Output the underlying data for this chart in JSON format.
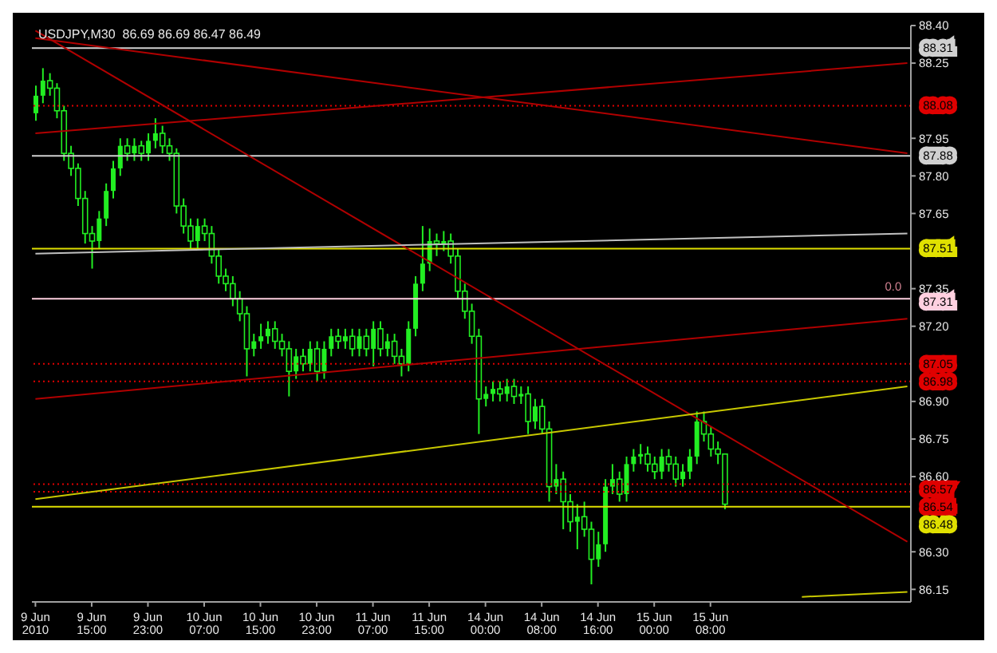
{
  "chart_data": {
    "type": "candlestick",
    "title": "USDJPY,M30  86.69 86.69 86.47 86.49",
    "color": "#22ee22",
    "categories": [
      "9 Jun 2010",
      null,
      null,
      null,
      null,
      null,
      null,
      null,
      "9 Jun 15:00",
      null,
      null,
      null,
      null,
      null,
      null,
      null,
      "9 Jun 23:00",
      null,
      null,
      null,
      null,
      null,
      null,
      null,
      "10 Jun 07:00",
      null,
      null,
      null,
      null,
      null,
      null,
      null,
      "10 Jun 15:00",
      null,
      null,
      null,
      null,
      null,
      null,
      null,
      "10 Jun 23:00",
      null,
      null,
      null,
      null,
      null,
      null,
      null,
      "11 Jun 07:00",
      null,
      null,
      null,
      null,
      null,
      null,
      null,
      "11 Jun 15:00",
      null,
      null,
      null,
      null,
      null,
      null,
      null,
      "14 Jun 00:00",
      null,
      null,
      null,
      null,
      null,
      null,
      null,
      "14 Jun 08:00",
      null,
      null,
      null,
      null,
      null,
      null,
      null,
      "14 Jun 16:00",
      null,
      null,
      null,
      null,
      null,
      null,
      null,
      "15 Jun 00:00",
      null,
      null,
      null,
      null,
      null,
      null,
      null,
      "15 Jun 08:00",
      null,
      null,
      null,
      null,
      null,
      null,
      null,
      null,
      null,
      null,
      null,
      null,
      null,
      null,
      null,
      null,
      null,
      null,
      null,
      null,
      null,
      null,
      null,
      null,
      null,
      null,
      null,
      null
    ],
    "ohlc": [
      [
        88.05,
        88.16,
        88.02,
        88.12
      ],
      [
        88.12,
        88.23,
        88.09,
        88.18
      ],
      [
        88.18,
        88.21,
        88.12,
        88.15
      ],
      [
        88.15,
        88.17,
        88.03,
        88.06
      ],
      [
        88.06,
        88.08,
        87.86,
        87.89
      ],
      [
        87.89,
        87.92,
        87.8,
        87.83
      ],
      [
        87.83,
        87.85,
        87.68,
        87.71
      ],
      [
        87.71,
        87.74,
        87.53,
        87.57
      ],
      [
        87.57,
        87.6,
        87.43,
        87.54
      ],
      [
        87.54,
        87.66,
        87.51,
        87.63
      ],
      [
        87.63,
        87.77,
        87.6,
        87.74
      ],
      [
        87.74,
        87.86,
        87.71,
        87.83
      ],
      [
        87.83,
        87.95,
        87.8,
        87.92
      ],
      [
        87.92,
        87.95,
        87.86,
        87.89
      ],
      [
        87.89,
        87.95,
        87.86,
        87.92
      ],
      [
        87.92,
        87.94,
        87.86,
        87.89
      ],
      [
        87.89,
        87.97,
        87.86,
        87.94
      ],
      [
        87.94,
        88.03,
        87.91,
        87.97
      ],
      [
        87.97,
        88.0,
        87.89,
        87.92
      ],
      [
        87.92,
        87.95,
        87.86,
        87.89
      ],
      [
        87.89,
        87.91,
        87.65,
        87.68
      ],
      [
        87.68,
        87.71,
        87.57,
        87.6
      ],
      [
        87.6,
        87.63,
        87.51,
        87.54
      ],
      [
        87.54,
        87.63,
        87.51,
        87.6
      ],
      [
        87.6,
        87.63,
        87.54,
        87.57
      ],
      [
        87.57,
        87.6,
        87.45,
        87.48
      ],
      [
        87.48,
        87.51,
        87.37,
        87.4
      ],
      [
        87.4,
        87.43,
        87.34,
        87.37
      ],
      [
        87.37,
        87.4,
        87.28,
        87.31
      ],
      [
        87.31,
        87.34,
        87.22,
        87.25
      ],
      [
        87.25,
        87.28,
        87.0,
        87.11
      ],
      [
        87.11,
        87.17,
        87.08,
        87.14
      ],
      [
        87.14,
        87.21,
        87.11,
        87.16
      ],
      [
        87.16,
        87.22,
        87.13,
        87.19
      ],
      [
        87.19,
        87.22,
        87.11,
        87.14
      ],
      [
        87.14,
        87.17,
        87.08,
        87.11
      ],
      [
        87.11,
        87.14,
        86.92,
        87.02
      ],
      [
        87.02,
        87.11,
        86.99,
        87.08
      ],
      [
        87.08,
        87.11,
        87.02,
        87.05
      ],
      [
        87.05,
        87.14,
        87.02,
        87.11
      ],
      [
        87.11,
        87.14,
        86.98,
        87.02
      ],
      [
        87.02,
        87.14,
        86.99,
        87.11
      ],
      [
        87.11,
        87.19,
        87.08,
        87.16
      ],
      [
        87.16,
        87.19,
        87.11,
        87.14
      ],
      [
        87.14,
        87.19,
        87.11,
        87.16
      ],
      [
        87.16,
        87.19,
        87.08,
        87.11
      ],
      [
        87.11,
        87.19,
        87.08,
        87.16
      ],
      [
        87.16,
        87.19,
        87.08,
        87.11
      ],
      [
        87.11,
        87.22,
        87.04,
        87.19
      ],
      [
        87.19,
        87.22,
        87.08,
        87.11
      ],
      [
        87.11,
        87.17,
        87.08,
        87.14
      ],
      [
        87.14,
        87.17,
        87.05,
        87.08
      ],
      [
        87.08,
        87.11,
        87.0,
        87.05
      ],
      [
        87.05,
        87.22,
        87.02,
        87.19
      ],
      [
        87.19,
        87.4,
        87.16,
        87.37
      ],
      [
        87.37,
        87.6,
        87.34,
        87.45
      ],
      [
        87.45,
        87.59,
        87.42,
        87.54
      ],
      [
        87.54,
        87.57,
        87.48,
        87.53
      ],
      [
        87.53,
        87.58,
        87.5,
        87.54
      ],
      [
        87.54,
        87.57,
        87.45,
        87.48
      ],
      [
        87.48,
        87.51,
        87.31,
        87.34
      ],
      [
        87.34,
        87.37,
        87.23,
        87.26
      ],
      [
        87.26,
        87.29,
        87.13,
        87.16
      ],
      [
        87.16,
        87.19,
        86.77,
        86.91
      ],
      [
        86.91,
        86.96,
        86.88,
        86.93
      ],
      [
        86.93,
        86.98,
        86.9,
        86.95
      ],
      [
        86.95,
        86.98,
        86.9,
        86.93
      ],
      [
        86.93,
        86.99,
        86.9,
        86.96
      ],
      [
        86.96,
        86.99,
        86.89,
        86.92
      ],
      [
        86.92,
        86.96,
        86.89,
        86.93
      ],
      [
        86.93,
        86.96,
        86.77,
        86.82
      ],
      [
        86.82,
        86.91,
        86.79,
        86.88
      ],
      [
        86.88,
        86.91,
        86.77,
        86.79
      ],
      [
        86.79,
        86.82,
        86.5,
        86.56
      ],
      [
        86.56,
        86.65,
        86.53,
        86.59
      ],
      [
        86.59,
        86.62,
        86.39,
        86.5
      ],
      [
        86.5,
        86.53,
        86.38,
        86.42
      ],
      [
        86.42,
        86.49,
        86.31,
        86.44
      ],
      [
        86.44,
        86.5,
        86.36,
        86.39
      ],
      [
        86.39,
        86.42,
        86.17,
        86.27
      ],
      [
        86.27,
        86.38,
        86.24,
        86.33
      ],
      [
        86.33,
        86.59,
        86.3,
        86.56
      ],
      [
        86.56,
        86.65,
        86.53,
        86.59
      ],
      [
        86.59,
        86.62,
        86.5,
        86.53
      ],
      [
        86.53,
        86.68,
        86.5,
        86.65
      ],
      [
        86.65,
        86.71,
        86.62,
        86.68
      ],
      [
        86.68,
        86.73,
        86.65,
        86.69
      ],
      [
        86.69,
        86.72,
        86.62,
        86.65
      ],
      [
        86.65,
        86.68,
        86.59,
        86.62
      ],
      [
        86.62,
        86.71,
        86.59,
        86.68
      ],
      [
        86.68,
        86.71,
        86.62,
        86.65
      ],
      [
        86.65,
        86.68,
        86.56,
        86.59
      ],
      [
        86.59,
        86.65,
        86.56,
        86.62
      ],
      [
        86.62,
        86.71,
        86.59,
        86.68
      ],
      [
        86.68,
        86.86,
        86.65,
        86.82
      ],
      [
        86.82,
        86.86,
        86.74,
        86.77
      ],
      [
        86.77,
        86.8,
        86.68,
        86.71
      ],
      [
        86.71,
        86.74,
        86.65,
        86.69
      ],
      [
        86.69,
        86.69,
        86.47,
        86.49
      ],
      null,
      null,
      null,
      null,
      null,
      null,
      null,
      null,
      null,
      null,
      null,
      null,
      null,
      null,
      null,
      null,
      null,
      null,
      null,
      null,
      null,
      null,
      null,
      null,
      null,
      null
    ],
    "series": [
      {
        "type": "line",
        "color": "#b00000",
        "values": [
          88.35,
          null,
          null,
          null,
          null,
          null,
          null,
          null,
          null,
          null,
          null,
          null,
          null,
          null,
          null,
          null,
          null,
          null,
          null,
          null,
          null,
          null,
          null,
          null,
          null,
          null,
          null,
          null,
          null,
          null,
          null,
          null,
          null,
          null,
          null,
          null,
          null,
          null,
          null,
          null,
          null,
          null,
          null,
          null,
          null,
          null,
          null,
          null,
          null,
          null,
          null,
          null,
          null,
          null,
          null,
          null,
          null,
          null,
          null,
          null,
          null,
          null,
          null,
          null,
          null,
          null,
          null,
          null,
          null,
          null,
          null,
          null,
          null,
          null,
          null,
          null,
          null,
          null,
          null,
          null,
          null,
          null,
          null,
          null,
          null,
          null,
          null,
          null,
          null,
          null,
          null,
          null,
          null,
          null,
          null,
          null,
          null,
          null,
          null,
          null,
          null,
          null,
          null,
          null,
          null,
          null,
          null,
          null,
          null,
          null,
          null,
          null,
          null,
          null,
          null,
          null,
          null,
          null,
          null,
          null,
          null,
          null,
          null,
          null,
          87.89
        ]
      },
      {
        "type": "line",
        "color": "#b00000",
        "values": [
          87.97,
          null,
          null,
          null,
          null,
          null,
          null,
          null,
          null,
          null,
          null,
          null,
          null,
          null,
          null,
          null,
          null,
          null,
          null,
          null,
          null,
          null,
          null,
          null,
          null,
          null,
          null,
          null,
          null,
          null,
          null,
          null,
          null,
          null,
          null,
          null,
          null,
          null,
          null,
          null,
          null,
          null,
          null,
          null,
          null,
          null,
          null,
          null,
          null,
          null,
          null,
          null,
          null,
          null,
          null,
          null,
          null,
          null,
          null,
          null,
          null,
          null,
          null,
          null,
          null,
          null,
          null,
          null,
          null,
          null,
          null,
          null,
          null,
          null,
          null,
          null,
          null,
          null,
          null,
          null,
          null,
          null,
          null,
          null,
          null,
          null,
          null,
          null,
          null,
          null,
          null,
          null,
          null,
          null,
          null,
          null,
          null,
          null,
          null,
          null,
          null,
          null,
          null,
          null,
          null,
          null,
          null,
          null,
          null,
          null,
          null,
          null,
          null,
          null,
          null,
          null,
          null,
          null,
          null,
          null,
          null,
          null,
          null,
          null,
          88.25
        ]
      },
      {
        "type": "line",
        "color": "#b00000",
        "values": [
          88.38,
          null,
          null,
          null,
          null,
          null,
          null,
          null,
          null,
          null,
          null,
          null,
          null,
          null,
          null,
          null,
          null,
          null,
          null,
          null,
          null,
          null,
          null,
          null,
          null,
          null,
          null,
          null,
          null,
          null,
          null,
          null,
          null,
          null,
          null,
          null,
          null,
          null,
          null,
          null,
          null,
          null,
          null,
          null,
          null,
          null,
          null,
          null,
          null,
          null,
          null,
          null,
          null,
          null,
          null,
          null,
          null,
          null,
          null,
          null,
          null,
          null,
          null,
          null,
          null,
          null,
          null,
          null,
          null,
          null,
          null,
          null,
          null,
          null,
          null,
          null,
          null,
          null,
          null,
          null,
          null,
          null,
          null,
          null,
          null,
          null,
          null,
          null,
          null,
          null,
          null,
          null,
          null,
          null,
          null,
          null,
          null,
          null,
          null,
          null,
          null,
          null,
          null,
          null,
          null,
          null,
          null,
          null,
          null,
          null,
          null,
          null,
          null,
          null,
          null,
          null,
          null,
          null,
          null,
          null,
          null,
          null,
          null,
          null,
          86.34
        ]
      },
      {
        "type": "line",
        "color": "#c0c0c0",
        "values": [
          87.49,
          null,
          null,
          null,
          null,
          null,
          null,
          null,
          null,
          null,
          null,
          null,
          null,
          null,
          null,
          null,
          null,
          null,
          null,
          null,
          null,
          null,
          null,
          null,
          null,
          null,
          null,
          null,
          null,
          null,
          null,
          null,
          null,
          null,
          null,
          null,
          null,
          null,
          null,
          null,
          null,
          null,
          null,
          null,
          null,
          null,
          null,
          null,
          null,
          null,
          null,
          null,
          null,
          null,
          null,
          null,
          null,
          null,
          null,
          null,
          null,
          null,
          null,
          null,
          null,
          null,
          null,
          null,
          null,
          null,
          null,
          null,
          null,
          null,
          null,
          null,
          null,
          null,
          null,
          null,
          null,
          null,
          null,
          null,
          null,
          null,
          null,
          null,
          null,
          null,
          null,
          null,
          null,
          null,
          null,
          null,
          null,
          null,
          null,
          null,
          null,
          null,
          null,
          null,
          null,
          null,
          null,
          null,
          null,
          null,
          null,
          null,
          null,
          null,
          null,
          null,
          null,
          null,
          null,
          null,
          null,
          null,
          null,
          null,
          87.57
        ]
      },
      {
        "type": "line",
        "color": "#b00000",
        "values": [
          86.91,
          null,
          null,
          null,
          null,
          null,
          null,
          null,
          null,
          null,
          null,
          null,
          null,
          null,
          null,
          null,
          null,
          null,
          null,
          null,
          null,
          null,
          null,
          null,
          null,
          null,
          null,
          null,
          null,
          null,
          null,
          null,
          null,
          null,
          null,
          null,
          null,
          null,
          null,
          null,
          null,
          null,
          null,
          null,
          null,
          null,
          null,
          null,
          null,
          null,
          null,
          null,
          null,
          null,
          null,
          null,
          null,
          null,
          null,
          null,
          null,
          null,
          null,
          null,
          null,
          null,
          null,
          null,
          null,
          null,
          null,
          null,
          null,
          null,
          null,
          null,
          null,
          null,
          null,
          null,
          null,
          null,
          null,
          null,
          null,
          null,
          null,
          null,
          null,
          null,
          null,
          null,
          null,
          null,
          null,
          null,
          null,
          null,
          null,
          null,
          null,
          null,
          null,
          null,
          null,
          null,
          null,
          null,
          null,
          null,
          null,
          null,
          null,
          null,
          null,
          null,
          null,
          null,
          null,
          null,
          null,
          null,
          null,
          null,
          87.23
        ]
      },
      {
        "type": "line",
        "color": "#c8c800",
        "values": [
          86.51,
          null,
          null,
          null,
          null,
          null,
          null,
          null,
          null,
          null,
          null,
          null,
          null,
          null,
          null,
          null,
          null,
          null,
          null,
          null,
          null,
          null,
          null,
          null,
          null,
          null,
          null,
          null,
          null,
          null,
          null,
          null,
          null,
          null,
          null,
          null,
          null,
          null,
          null,
          null,
          null,
          null,
          null,
          null,
          null,
          null,
          null,
          null,
          null,
          null,
          null,
          null,
          null,
          null,
          null,
          null,
          null,
          null,
          null,
          null,
          null,
          null,
          null,
          null,
          null,
          null,
          null,
          null,
          null,
          null,
          null,
          null,
          null,
          null,
          null,
          null,
          null,
          null,
          null,
          null,
          null,
          null,
          null,
          null,
          null,
          null,
          null,
          null,
          null,
          null,
          null,
          null,
          null,
          null,
          null,
          null,
          null,
          null,
          null,
          null,
          null,
          null,
          null,
          null,
          null,
          null,
          null,
          null,
          null,
          null,
          null,
          null,
          null,
          null,
          null,
          null,
          null,
          null,
          null,
          null,
          null,
          null,
          null,
          null,
          86.96
        ]
      },
      {
        "type": "line",
        "color": "#c8c800",
        "values": [
          null,
          null,
          null,
          null,
          null,
          null,
          null,
          null,
          null,
          null,
          null,
          null,
          null,
          null,
          null,
          null,
          null,
          null,
          null,
          null,
          null,
          null,
          null,
          null,
          null,
          null,
          null,
          null,
          null,
          null,
          null,
          null,
          null,
          null,
          null,
          null,
          null,
          null,
          null,
          null,
          null,
          null,
          null,
          null,
          null,
          null,
          null,
          null,
          null,
          null,
          null,
          null,
          null,
          null,
          null,
          null,
          null,
          null,
          null,
          null,
          null,
          null,
          null,
          null,
          null,
          null,
          null,
          null,
          null,
          null,
          null,
          null,
          null,
          null,
          null,
          null,
          null,
          null,
          null,
          null,
          null,
          null,
          null,
          null,
          null,
          null,
          null,
          null,
          null,
          null,
          null,
          null,
          null,
          null,
          null,
          null,
          null,
          null,
          null,
          null,
          null,
          null,
          null,
          null,
          null,
          null,
          null,
          null,
          null,
          86.12,
          null,
          null,
          null,
          null,
          null,
          null,
          null,
          null,
          null,
          null,
          null,
          null,
          null,
          null,
          86.14
        ]
      }
    ],
    "ref_lines": [
      {
        "axis": "y",
        "value": 88.31,
        "label": "88.31",
        "color": "#d0d0d0",
        "line_style": "solid"
      },
      {
        "axis": "y",
        "value": 88.08,
        "label": "88.08",
        "color": "#e00000",
        "line_style": "dotted"
      },
      {
        "axis": "y",
        "value": 87.88,
        "label": "87.88",
        "color": "#d0d0d0",
        "line_style": "solid"
      },
      {
        "axis": "y",
        "value": 87.51,
        "label": "87.51",
        "color": "#e0e000",
        "line_style": "solid"
      },
      {
        "axis": "y",
        "value": 87.31,
        "label": "87.31",
        "color": "#ffd0e0",
        "line_style": "solid"
      },
      {
        "axis": "y",
        "value": 87.05,
        "label": "87.05",
        "color": "#e00000",
        "line_style": "dotted"
      },
      {
        "axis": "y",
        "value": 86.98,
        "label": "86.98",
        "color": "#e00000",
        "line_style": "dotted"
      },
      {
        "axis": "y",
        "value": 86.57,
        "label": "86.57",
        "color": "#e00000",
        "line_style": "dotted"
      },
      {
        "axis": "y",
        "value": 86.54,
        "label": "86.54",
        "color": "#e00000",
        "line_style": "dotted"
      },
      {
        "axis": "y",
        "value": 86.48,
        "label": "86.48",
        "color": "#e0e000",
        "line_style": "solid"
      }
    ],
    "annotations": [
      {
        "text": "0.0",
        "y": 87.31
      }
    ],
    "ylim": [
      86.1,
      88.4
    ],
    "yticks": [
      86.15,
      {
        "value": 86.3,
        "label": "86.30"
      },
      {
        "value": 86.6,
        "label": "86.60"
      },
      86.75,
      {
        "value": 86.9,
        "label": "86.90"
      },
      {
        "value": 87.2,
        "label": "87.20"
      },
      87.35,
      87.65,
      {
        "value": 87.8,
        "label": "87.80"
      },
      87.95,
      88.25,
      {
        "value": 88.4,
        "label": "88.40"
      }
    ],
    "grid": false,
    "legend": false
  }
}
